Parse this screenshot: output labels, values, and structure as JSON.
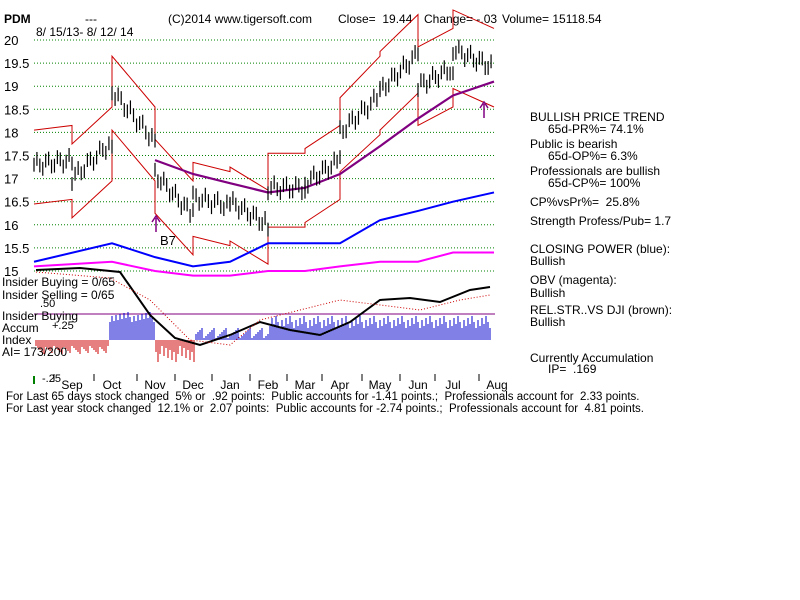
{
  "header": {
    "symbol": "PDM",
    "dashes": "---",
    "copyright": "(C)2014 www.tigersoft.com",
    "close": "Close=  19.44",
    "change": "Change= -.03",
    "volume": "Volume= 15118.54",
    "date_range": "8/ 15/13- 8/ 12/ 14"
  },
  "chart_data": {
    "type": "line",
    "title": "PDM",
    "date_range": "8/15/13 - 8/12/14",
    "x_tick_labels": [
      "Sep",
      "Oct",
      "Nov",
      "Dec",
      "Jan",
      "Feb",
      "Mar",
      "Apr",
      "May",
      "Jun",
      "Jul",
      "Aug"
    ],
    "price_axis": {
      "tick_labels": [
        "20",
        "19.5",
        "19",
        "18.5",
        "18",
        "17.5",
        "17",
        "16.5",
        "16",
        "15.5",
        "15"
      ],
      "ylim": [
        15,
        20
      ],
      "grid": true
    },
    "indicator_axis_labels": [
      ".50",
      "+.25",
      "-.25"
    ],
    "series": [
      {
        "name": "Price",
        "color": "#000000",
        "x": [
          "Aug",
          "Sep",
          "Sep",
          "Oct",
          "Oct",
          "Nov",
          "Nov",
          "Dec",
          "Dec",
          "Jan",
          "Jan",
          "Feb",
          "Feb",
          "Mar",
          "Mar",
          "Apr",
          "Apr",
          "May",
          "May",
          "Jun",
          "Jun",
          "Jul",
          "Jul",
          "Aug"
        ],
        "values": [
          17.3,
          17.4,
          17.0,
          17.8,
          18.9,
          17.8,
          17.1,
          16.2,
          16.6,
          16.4,
          16.5,
          16.0,
          16.8,
          16.8,
          16.9,
          17.4,
          18.0,
          18.8,
          18.9,
          19.7,
          19.0,
          19.4,
          19.8,
          19.4
        ]
      },
      {
        "name": "65-day MA",
        "color": "#800080",
        "x": [
          "Nov",
          "Dec",
          "Jan",
          "Feb",
          "Mar",
          "Apr",
          "May",
          "Jun",
          "Jul",
          "Aug"
        ],
        "values": [
          17.4,
          17.1,
          16.9,
          16.7,
          16.8,
          17.1,
          17.7,
          18.3,
          18.8,
          19.1
        ]
      },
      {
        "name": "Closing Power",
        "color": "#0000ff",
        "x": [
          "Aug",
          "Oct",
          "Nov",
          "Dec",
          "Jan",
          "Feb",
          "Mar",
          "Apr",
          "May",
          "Jun",
          "Jul",
          "Aug"
        ],
        "values": [
          15.2,
          15.6,
          15.3,
          15.1,
          15.2,
          15.6,
          15.6,
          15.6,
          16.1,
          16.3,
          16.5,
          16.7
        ]
      },
      {
        "name": "OBV",
        "color": "#ff00ff",
        "x": [
          "Aug",
          "Oct",
          "Nov",
          "Dec",
          "Jan",
          "Feb",
          "Mar",
          "Apr",
          "May",
          "Jun",
          "Jul",
          "Aug"
        ],
        "values": [
          15.1,
          15.2,
          15.0,
          14.9,
          14.9,
          15.0,
          15.0,
          15.1,
          15.2,
          15.2,
          15.4,
          15.4
        ]
      }
    ],
    "annotations": [
      "B7"
    ],
    "insider": {
      "buying_label": "Insider Buying = 0/65",
      "selling_label": "Insider Selling = 0/65",
      "panel_label_1": "Insider Buying",
      "panel_label_2": "Accum",
      "panel_label_3": "Index",
      "ai": "AI= 173/200"
    }
  },
  "side_panel": {
    "trend_title": "BULLISH PRICE TREND",
    "pr": "65d-PR%= 74.1%",
    "public_title": "Public is bearish",
    "op": "65d-OP%= 6.3%",
    "pros_title": "Professionals are bullish",
    "cp": "65d-CP%= 100%",
    "cpvspr": "CP%vsPr%=  25.8%",
    "strength": "Strength Profess/Pub= 1.7",
    "closing_power_title": "CLOSING POWER (blue):",
    "closing_power_value": "Bullish",
    "obv_title": "OBV (magenta):",
    "obv_value": "Bullish",
    "relstr_title": "REL.STR..VS DJI (brown):",
    "relstr_value": "Bullish",
    "accum_title": "Currently Accumulation",
    "ip": "IP=  .169"
  },
  "footer": {
    "line1": "For Last 65 days stock changed  5% or  .92 points:  Public accounts for -1.41 points.;  Professionals account for  2.33 points.",
    "line2": "For Last year stock changed  12.1% or  2.07 points:  Public accounts for -2.74 points.;  Professionals account for  4.81 points."
  }
}
